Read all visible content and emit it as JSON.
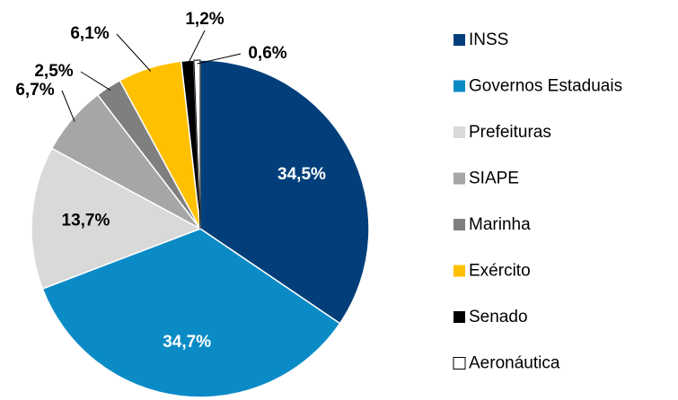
{
  "chart_data": {
    "type": "pie",
    "categories": [
      "INSS",
      "Governos Estaduais",
      "Prefeituras",
      "SIAPE",
      "Marinha",
      "Exército",
      "Senado",
      "Aeronáutica"
    ],
    "values": [
      34.5,
      34.7,
      13.7,
      6.7,
      2.5,
      6.1,
      1.2,
      0.6
    ],
    "value_labels": [
      "34,5%",
      "34,7%",
      "13,7%",
      "6,7%",
      "2,5%",
      "6,1%",
      "1,2%",
      "0,6%"
    ],
    "colors": [
      "#023f7a",
      "#0a8bc6",
      "#d9d9d9",
      "#a6a6a6",
      "#7f7f7f",
      "#ffc000",
      "#000000",
      "#ffffff"
    ],
    "legend": "right"
  }
}
